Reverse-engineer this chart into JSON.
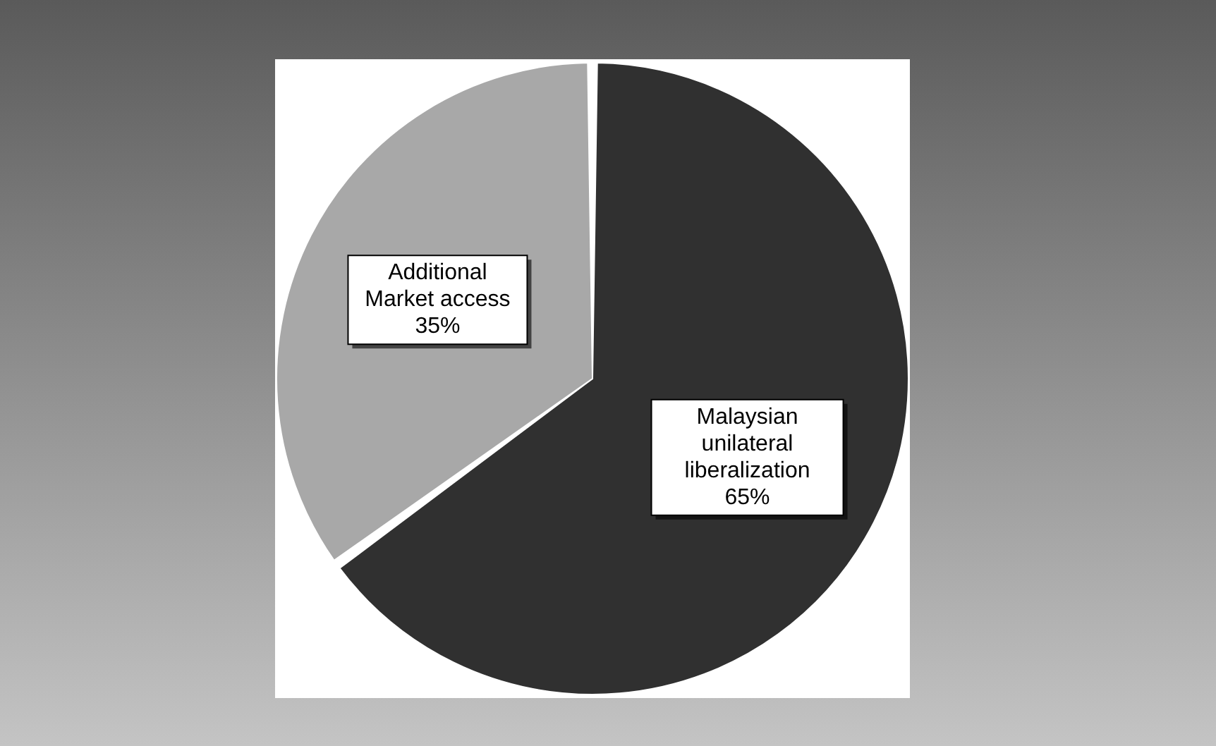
{
  "chart_data": {
    "type": "pie",
    "categories": [
      "Malaysian unilateral liberalization",
      "Additional Market access"
    ],
    "values": [
      65,
      35
    ],
    "colors": [
      "#303030",
      "#a8a8a8"
    ],
    "value_labels": [
      "65%",
      "35%"
    ],
    "legend": false
  }
}
